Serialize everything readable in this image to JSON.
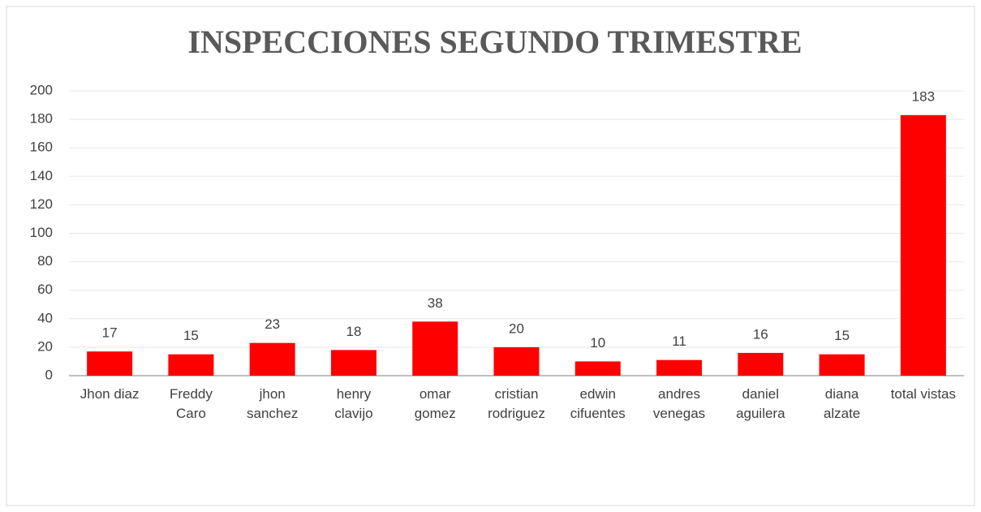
{
  "chart_data": {
    "type": "bar",
    "title": "INSPECCIONES SEGUNDO TRIMESTRE",
    "categories": [
      "Jhon diaz",
      "Freddy Caro",
      "jhon sanchez",
      "henry clavijo",
      "omar gomez",
      "cristian rodriguez",
      "edwin cifuentes",
      "andres venegas",
      "daniel aguilera",
      "diana alzate",
      "total vistas"
    ],
    "values": [
      17,
      15,
      23,
      18,
      38,
      20,
      10,
      11,
      16,
      15,
      183
    ],
    "color": "#ff0000",
    "ylim": [
      0,
      200
    ],
    "yticks": [
      0,
      20,
      40,
      60,
      80,
      100,
      120,
      140,
      160,
      180,
      200
    ],
    "grid": true
  }
}
